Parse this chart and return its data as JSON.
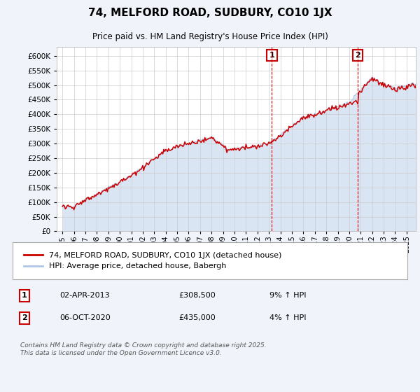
{
  "title": "74, MELFORD ROAD, SUDBURY, CO10 1JX",
  "subtitle": "Price paid vs. HM Land Registry's House Price Index (HPI)",
  "legend_line1": "74, MELFORD ROAD, SUDBURY, CO10 1JX (detached house)",
  "legend_line2": "HPI: Average price, detached house, Babergh",
  "annotation1_label": "1",
  "annotation1_date": "02-APR-2013",
  "annotation1_price": "£308,500",
  "annotation1_hpi": "9% ↑ HPI",
  "annotation2_label": "2",
  "annotation2_date": "06-OCT-2020",
  "annotation2_price": "£435,000",
  "annotation2_hpi": "4% ↑ HPI",
  "footer": "Contains HM Land Registry data © Crown copyright and database right 2025.\nThis data is licensed under the Open Government Licence v3.0.",
  "hpi_color": "#aec6e8",
  "price_color": "#cc0000",
  "background_color": "#f0f4fa",
  "plot_bg_color": "#ffffff",
  "ylim": [
    0,
    630000
  ],
  "yticks": [
    0,
    50000,
    100000,
    150000,
    200000,
    250000,
    300000,
    350000,
    400000,
    450000,
    500000,
    550000,
    600000
  ],
  "year_start": 1995,
  "year_end": 2026,
  "sale1_year": 2013.25,
  "sale1_price": 308500,
  "sale2_year": 2020.75,
  "sale2_price": 435000
}
